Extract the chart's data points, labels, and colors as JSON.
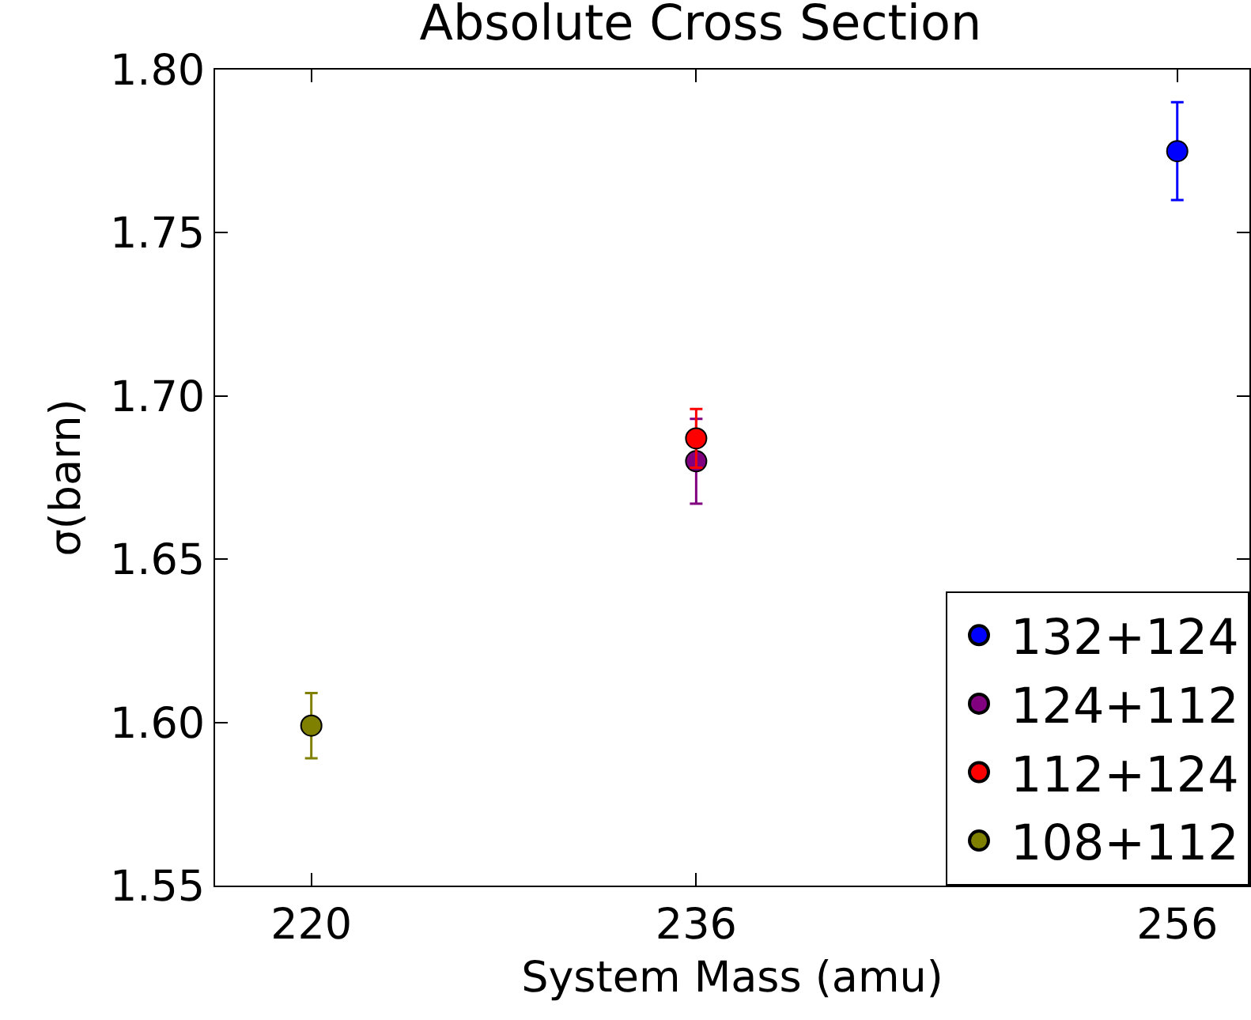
{
  "chart_data": {
    "type": "scatter",
    "title": "Absolute Cross Section",
    "xlabel": "System Mass (amu)",
    "ylabel": "σ(barn)",
    "xlim": [
      216,
      259
    ],
    "xticks": [
      220,
      236,
      256
    ],
    "ylim": [
      1.55,
      1.8
    ],
    "yticks": [
      {
        "value": 1.55,
        "label": "1.55"
      },
      {
        "value": 1.6,
        "label": "1.60"
      },
      {
        "value": 1.65,
        "label": "1.65"
      },
      {
        "value": 1.7,
        "label": "1.70"
      },
      {
        "value": 1.75,
        "label": "1.75"
      },
      {
        "value": 1.8,
        "label": "1.80"
      }
    ],
    "grid": false,
    "legend": "bottom right",
    "marker": "circle",
    "series": [
      {
        "name": "132+124",
        "color": "#0000ff",
        "x": [
          256
        ],
        "values": [
          1.775
        ],
        "errors": [
          0.015
        ]
      },
      {
        "name": "124+112",
        "color": "#800080",
        "x": [
          236
        ],
        "values": [
          1.68
        ],
        "errors": [
          0.013
        ]
      },
      {
        "name": "112+124",
        "color": "#ff0000",
        "x": [
          236
        ],
        "values": [
          1.687
        ],
        "errors": [
          0.009
        ]
      },
      {
        "name": "108+112",
        "color": "#808000",
        "x": [
          220
        ],
        "values": [
          1.599
        ],
        "errors": [
          0.01
        ]
      }
    ]
  }
}
